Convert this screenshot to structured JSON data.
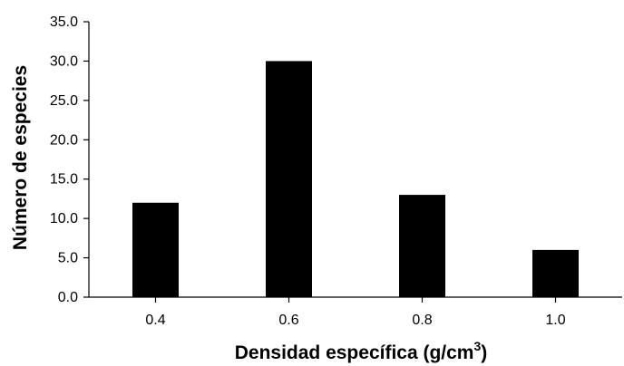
{
  "chart_data": {
    "type": "bar",
    "title": "",
    "categories": [
      "0.4",
      "0.6",
      "0.8",
      "1.0"
    ],
    "values": [
      12,
      30,
      13,
      6
    ],
    "xlabel": "Densidad específica (g/cm",
    "xlabel_superscript": "3",
    "xlabel_suffix": ")",
    "ylabel": "Número de especies",
    "ylim": [
      0,
      35
    ],
    "yticks": [
      "0.0",
      "5.0",
      "10.0",
      "15.0",
      "20.0",
      "25.0",
      "30.0",
      "35.0"
    ],
    "grid": false,
    "legend": "none",
    "bar_color": "#000000"
  }
}
